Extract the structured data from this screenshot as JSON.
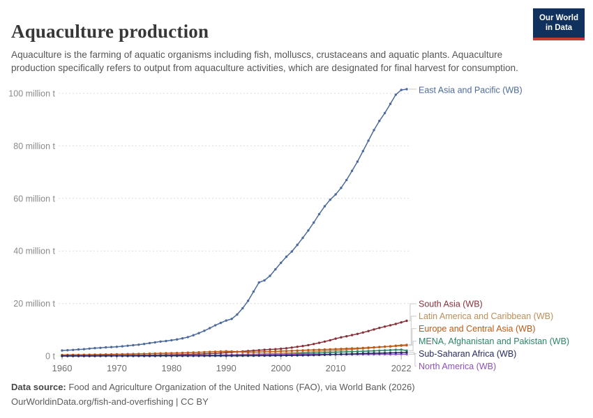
{
  "header": {
    "title": "Aquaculture production",
    "subtitle": "Aquaculture is the farming of aquatic organisms including fish, molluscs, crustaceans and aquatic plants. Aquaculture production specifically refers to output from aquaculture activities, which are designated for final harvest for consumption.",
    "logo": {
      "line1": "Our World",
      "line2": "in Data"
    }
  },
  "footer": {
    "source_label": "Data source:",
    "source_text": " Food and Agriculture Organization of the United Nations (FAO), via World Bank (2026)",
    "site_link": "OurWorldinData.org/fish-and-overfishing",
    "separator": " | ",
    "license": "CC BY"
  },
  "colors": {
    "grid": "#dcdcdc",
    "y_axis_text": "#8a8a8a",
    "x_axis_text": "#6f6f6f",
    "tick_mark": "#a3a3a3",
    "connector": "#c9c9c9",
    "logo_bg": "#10305d",
    "logo_bar": "#c53a38"
  },
  "chart_data": {
    "type": "line",
    "title": "Aquaculture production",
    "unit": "million t",
    "grid": "horizontal-dashed",
    "legend_position": "end-of-line-right-labels",
    "ylim": [
      0,
      104
    ],
    "xlim": [
      1960,
      2023
    ],
    "yticks": [
      {
        "v": 0,
        "label": "0 t"
      },
      {
        "v": 20,
        "label": "20 million t"
      },
      {
        "v": 40,
        "label": "40 million t"
      },
      {
        "v": 60,
        "label": "60 million t"
      },
      {
        "v": 80,
        "label": "80 million t"
      },
      {
        "v": 100,
        "label": "100 million t"
      }
    ],
    "xticks": [
      {
        "v": 1960,
        "label": "1960"
      },
      {
        "v": 1970,
        "label": "1970"
      },
      {
        "v": 1980,
        "label": "1980"
      },
      {
        "v": 1990,
        "label": "1990"
      },
      {
        "v": 2000,
        "label": "2000"
      },
      {
        "v": 2010,
        "label": "2010"
      },
      {
        "v": 2022,
        "label": "2022"
      }
    ],
    "x": [
      1960,
      1961,
      1962,
      1963,
      1964,
      1965,
      1966,
      1967,
      1968,
      1969,
      1970,
      1971,
      1972,
      1973,
      1974,
      1975,
      1976,
      1977,
      1978,
      1979,
      1980,
      1981,
      1982,
      1983,
      1984,
      1985,
      1986,
      1987,
      1988,
      1989,
      1990,
      1991,
      1992,
      1993,
      1994,
      1995,
      1996,
      1997,
      1998,
      1999,
      2000,
      2001,
      2002,
      2003,
      2004,
      2005,
      2006,
      2007,
      2008,
      2009,
      2010,
      2011,
      2012,
      2013,
      2014,
      2015,
      2016,
      2017,
      2018,
      2019,
      2020,
      2021,
      2022,
      2023
    ],
    "series": [
      {
        "name": "East Asia and Pacific (WB)",
        "slug": "east-asia-and-pacific",
        "color": "#4C6A9C",
        "values": [
          2.1,
          2.2,
          2.3,
          2.5,
          2.6,
          2.8,
          3.0,
          3.1,
          3.3,
          3.4,
          3.5,
          3.7,
          3.9,
          4.1,
          4.3,
          4.6,
          4.9,
          5.2,
          5.5,
          5.7,
          6.0,
          6.3,
          6.7,
          7.2,
          7.9,
          8.7,
          9.6,
          10.6,
          11.7,
          12.6,
          13.5,
          14.1,
          15.8,
          18.2,
          21.0,
          24.5,
          28.0,
          28.8,
          30.5,
          33.0,
          35.5,
          37.8,
          39.8,
          42.3,
          45.0,
          47.8,
          50.8,
          54.0,
          57.0,
          59.5,
          61.5,
          64.0,
          67.0,
          70.5,
          74.0,
          78.0,
          82.0,
          86.0,
          89.5,
          92.5,
          96.0,
          99.5,
          101.3,
          101.6
        ]
      },
      {
        "name": "South Asia (WB)",
        "slug": "south-asia",
        "color": "#883039",
        "values": [
          0.1,
          0.11,
          0.12,
          0.13,
          0.14,
          0.15,
          0.16,
          0.17,
          0.18,
          0.2,
          0.22,
          0.24,
          0.26,
          0.28,
          0.3,
          0.32,
          0.35,
          0.38,
          0.41,
          0.44,
          0.48,
          0.52,
          0.57,
          0.62,
          0.68,
          0.75,
          0.83,
          0.92,
          1.02,
          1.15,
          1.3,
          1.45,
          1.6,
          1.75,
          1.9,
          2.05,
          2.2,
          2.35,
          2.5,
          2.6,
          2.75,
          2.95,
          3.2,
          3.5,
          3.8,
          4.15,
          4.55,
          5.0,
          5.5,
          6.0,
          6.6,
          7.1,
          7.5,
          7.95,
          8.4,
          8.95,
          9.5,
          10.1,
          10.7,
          11.2,
          11.7,
          12.2,
          12.8,
          13.4
        ]
      },
      {
        "name": "Latin America and Caribbean (WB)",
        "slug": "latin-america-and-caribbean",
        "color": "#BC8E5A",
        "values": [
          0.01,
          0.01,
          0.01,
          0.02,
          0.02,
          0.02,
          0.03,
          0.03,
          0.03,
          0.04,
          0.04,
          0.05,
          0.05,
          0.06,
          0.06,
          0.07,
          0.08,
          0.09,
          0.1,
          0.11,
          0.12,
          0.14,
          0.16,
          0.18,
          0.2,
          0.23,
          0.26,
          0.3,
          0.34,
          0.38,
          0.43,
          0.48,
          0.54,
          0.6,
          0.66,
          0.72,
          0.78,
          0.85,
          0.92,
          1.0,
          1.07,
          1.15,
          1.22,
          1.3,
          1.4,
          1.52,
          1.65,
          1.78,
          1.9,
          1.95,
          2.05,
          2.2,
          2.35,
          2.5,
          2.7,
          2.85,
          3.0,
          3.2,
          3.4,
          3.55,
          3.7,
          3.95,
          4.15,
          4.3
        ]
      },
      {
        "name": "Europe and Central Asia (WB)",
        "slug": "europe-and-central-asia",
        "color": "#BE5915",
        "values": [
          0.4,
          0.42,
          0.44,
          0.46,
          0.48,
          0.51,
          0.54,
          0.57,
          0.6,
          0.63,
          0.66,
          0.7,
          0.74,
          0.78,
          0.82,
          0.86,
          0.9,
          0.95,
          1.0,
          1.05,
          1.1,
          1.15,
          1.2,
          1.26,
          1.32,
          1.4,
          1.48,
          1.56,
          1.64,
          1.72,
          1.8,
          1.75,
          1.62,
          1.5,
          1.45,
          1.48,
          1.52,
          1.58,
          1.65,
          1.72,
          1.85,
          1.92,
          2.0,
          2.08,
          2.15,
          2.25,
          2.32,
          2.4,
          2.48,
          2.55,
          2.62,
          2.7,
          2.8,
          2.88,
          2.95,
          3.05,
          3.18,
          3.3,
          3.42,
          3.55,
          3.65,
          3.8,
          3.95,
          4.05
        ]
      },
      {
        "name": "MENA, Afghanistan and Pakistan (WB)",
        "slug": "mena-afghanistan-and-pakistan",
        "color": "#2C8465",
        "values": [
          0.02,
          0.02,
          0.02,
          0.02,
          0.03,
          0.03,
          0.03,
          0.03,
          0.04,
          0.04,
          0.04,
          0.04,
          0.05,
          0.05,
          0.05,
          0.06,
          0.06,
          0.07,
          0.07,
          0.08,
          0.08,
          0.09,
          0.1,
          0.11,
          0.12,
          0.13,
          0.14,
          0.15,
          0.17,
          0.18,
          0.2,
          0.22,
          0.25,
          0.28,
          0.31,
          0.35,
          0.4,
          0.45,
          0.5,
          0.56,
          0.62,
          0.7,
          0.78,
          0.88,
          0.98,
          1.05,
          1.12,
          1.2,
          1.28,
          1.35,
          1.42,
          1.5,
          1.58,
          1.65,
          1.72,
          1.8,
          1.88,
          1.95,
          2.05,
          2.15,
          2.25,
          2.35,
          2.4,
          2.05
        ]
      },
      {
        "name": "Sub-Saharan Africa (WB)",
        "slug": "sub-saharan-africa",
        "color": "#262B63",
        "values": [
          0.01,
          0.01,
          0.01,
          0.01,
          0.01,
          0.01,
          0.01,
          0.02,
          0.02,
          0.02,
          0.02,
          0.02,
          0.02,
          0.03,
          0.03,
          0.03,
          0.03,
          0.03,
          0.04,
          0.04,
          0.04,
          0.04,
          0.05,
          0.05,
          0.05,
          0.06,
          0.06,
          0.07,
          0.07,
          0.08,
          0.08,
          0.09,
          0.09,
          0.1,
          0.1,
          0.11,
          0.12,
          0.13,
          0.14,
          0.15,
          0.16,
          0.18,
          0.2,
          0.23,
          0.26,
          0.3,
          0.35,
          0.4,
          0.46,
          0.52,
          0.58,
          0.65,
          0.72,
          0.8,
          0.88,
          0.95,
          1.0,
          1.05,
          1.1,
          1.15,
          1.2,
          1.25,
          1.3,
          1.35
        ]
      },
      {
        "name": "North America (WB)",
        "slug": "north-america",
        "color": "#8C52BC",
        "values": [
          0.05,
          0.05,
          0.06,
          0.06,
          0.07,
          0.07,
          0.08,
          0.08,
          0.09,
          0.1,
          0.1,
          0.11,
          0.12,
          0.13,
          0.14,
          0.15,
          0.16,
          0.17,
          0.18,
          0.19,
          0.2,
          0.21,
          0.23,
          0.25,
          0.27,
          0.29,
          0.31,
          0.33,
          0.35,
          0.37,
          0.39,
          0.41,
          0.43,
          0.45,
          0.47,
          0.49,
          0.51,
          0.53,
          0.55,
          0.57,
          0.58,
          0.59,
          0.6,
          0.61,
          0.62,
          0.63,
          0.63,
          0.64,
          0.64,
          0.64,
          0.63,
          0.63,
          0.62,
          0.62,
          0.63,
          0.63,
          0.64,
          0.64,
          0.65,
          0.65,
          0.64,
          0.65,
          0.66,
          0.66
        ]
      }
    ]
  }
}
